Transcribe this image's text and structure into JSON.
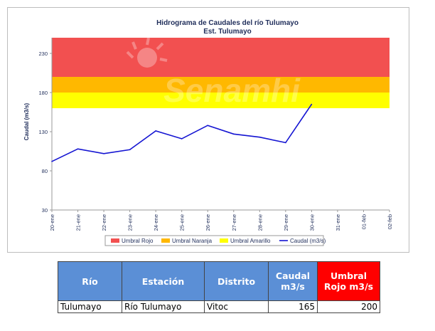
{
  "chart_data": {
    "type": "line",
    "title": "Hidrograma de Caudales del río Tulumayo",
    "subtitle": "Est. Tulumayo",
    "ylabel": "Caudal (m3/s)",
    "ylim": [
      30,
      250
    ],
    "yticks": [
      30,
      80,
      130,
      180,
      230
    ],
    "categories": [
      "20-ene",
      "21-ene",
      "22-ene",
      "23-ene",
      "24-ene",
      "25-ene",
      "26-ene",
      "27-ene",
      "28-ene",
      "29-ene",
      "30-ene",
      "31-ene",
      "01-feb",
      "02-feb"
    ],
    "thresholds": [
      {
        "name": "Umbral Rojo",
        "from": 200,
        "to": 250,
        "color": "#f25050"
      },
      {
        "name": "Umbral Naranja",
        "from": 180,
        "to": 200,
        "color": "#ffb800"
      },
      {
        "name": "Umbral Amarillo",
        "from": 160,
        "to": 180,
        "color": "#ffff00"
      }
    ],
    "series": [
      {
        "name": "Caudal (m3/s)",
        "color": "#1414d2",
        "values": [
          92,
          108,
          102,
          107,
          131,
          121,
          138,
          127,
          123,
          116,
          165,
          null,
          null,
          null
        ]
      }
    ],
    "legend_position": "bottom",
    "watermark": "Senamhi"
  },
  "table": {
    "headers": [
      "Río",
      "Estación",
      "Distrito",
      "Caudal m3/s",
      "Umbral Rojo m3/s"
    ],
    "row": [
      "Tulumayo",
      "Río Tulumayo",
      "Vitoc",
      "165",
      "200"
    ]
  },
  "colors": {
    "header_blue": "#5b8fd6",
    "header_red": "#ff0000"
  }
}
